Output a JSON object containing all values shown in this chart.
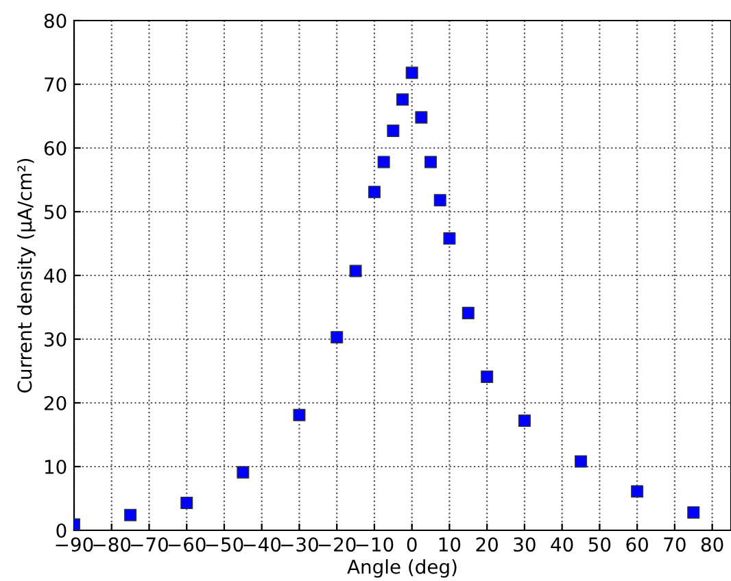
{
  "chart_data": {
    "type": "scatter",
    "xlabel": "Angle (deg)",
    "ylabel": "Current density (μA/cm²)",
    "x": [
      -90,
      -75,
      -60,
      -45,
      -30,
      -20,
      -15,
      -10,
      -7.5,
      -5,
      -2.5,
      0,
      2.5,
      5,
      7.5,
      10,
      15,
      20,
      30,
      45,
      60,
      75
    ],
    "series": [
      {
        "color": "#0000ff",
        "values": [
          0.9,
          2.4,
          4.3,
          9.1,
          18.1,
          30.3,
          40.7,
          53.1,
          57.8,
          62.7,
          67.6,
          71.8,
          64.8,
          57.8,
          51.8,
          45.8,
          34.1,
          24.1,
          17.2,
          10.8,
          6.1,
          2.8
        ]
      }
    ],
    "xlim": [
      -90,
      85
    ],
    "xticks": [
      -90,
      -80,
      -70,
      -60,
      -50,
      -40,
      -30,
      -20,
      -10,
      0,
      10,
      20,
      30,
      40,
      50,
      60,
      70,
      80
    ],
    "ylim": [
      0,
      80
    ],
    "yticks": [
      0,
      10,
      20,
      30,
      40,
      50,
      60,
      70,
      80
    ],
    "grid": true,
    "marker": "square"
  }
}
